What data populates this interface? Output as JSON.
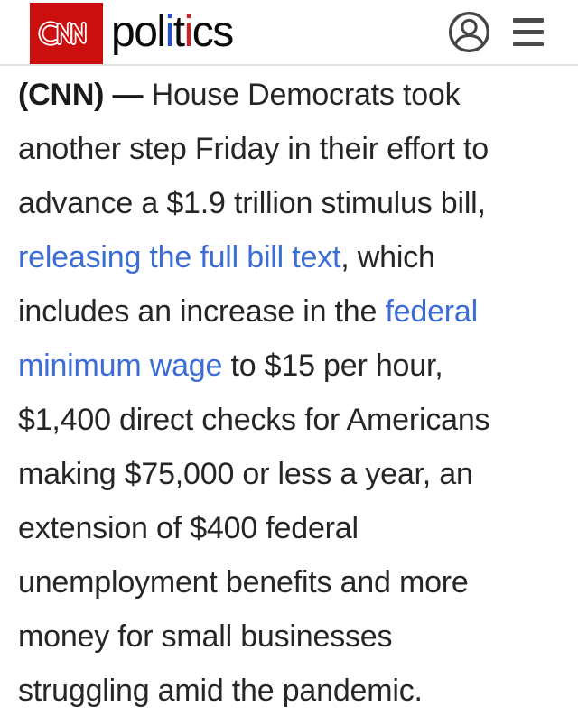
{
  "header": {
    "cnn_logo_label": "CNN",
    "wordmark_segments": [
      {
        "text": "pol",
        "color": "#0b0b0b"
      },
      {
        "text": "i",
        "color": "#2451c4"
      },
      {
        "text": "t",
        "color": "#0b0b0b"
      },
      {
        "text": "i",
        "color": "#cf2026"
      },
      {
        "text": "cs",
        "color": "#0b0b0b"
      }
    ],
    "account_icon": "account-icon",
    "menu_icon": "hamburger-menu-icon"
  },
  "colors": {
    "cnn_red": "#cb0e0e",
    "link_blue": "#3c6dd5",
    "body_text": "#262626",
    "icon_gray": "#4a4a4a"
  },
  "article": {
    "lines": [
      {
        "segments": [
          {
            "text": "(CNN) — ",
            "style": "bold"
          },
          {
            "text": "House Democrats took",
            "style": "normal"
          }
        ]
      },
      {
        "segments": [
          {
            "text": "another step Friday in their effort to",
            "style": "normal"
          }
        ]
      },
      {
        "segments": [
          {
            "text": "advance a $1.9 trillion stimulus bill,",
            "style": "normal"
          }
        ]
      },
      {
        "segments": [
          {
            "text": "releasing the full bill text",
            "style": "link"
          },
          {
            "text": ", which",
            "style": "normal"
          }
        ]
      },
      {
        "segments": [
          {
            "text": "includes an increase in the ",
            "style": "normal"
          },
          {
            "text": "federal",
            "style": "link"
          }
        ]
      },
      {
        "segments": [
          {
            "text": "minimum wage",
            "style": "link"
          },
          {
            "text": " to $15 per hour,",
            "style": "normal"
          }
        ]
      },
      {
        "segments": [
          {
            "text": "$1,400 direct checks for Americans",
            "style": "normal"
          }
        ]
      },
      {
        "segments": [
          {
            "text": "making $75,000 or less a year, an",
            "style": "normal"
          }
        ]
      },
      {
        "segments": [
          {
            "text": "extension of $400 federal",
            "style": "normal"
          }
        ]
      },
      {
        "segments": [
          {
            "text": "unemployment benefits and more",
            "style": "normal"
          }
        ]
      },
      {
        "segments": [
          {
            "text": "money for small businesses",
            "style": "normal"
          }
        ]
      },
      {
        "segments": [
          {
            "text": "struggling amid the pandemic.",
            "style": "normal"
          }
        ]
      }
    ]
  }
}
